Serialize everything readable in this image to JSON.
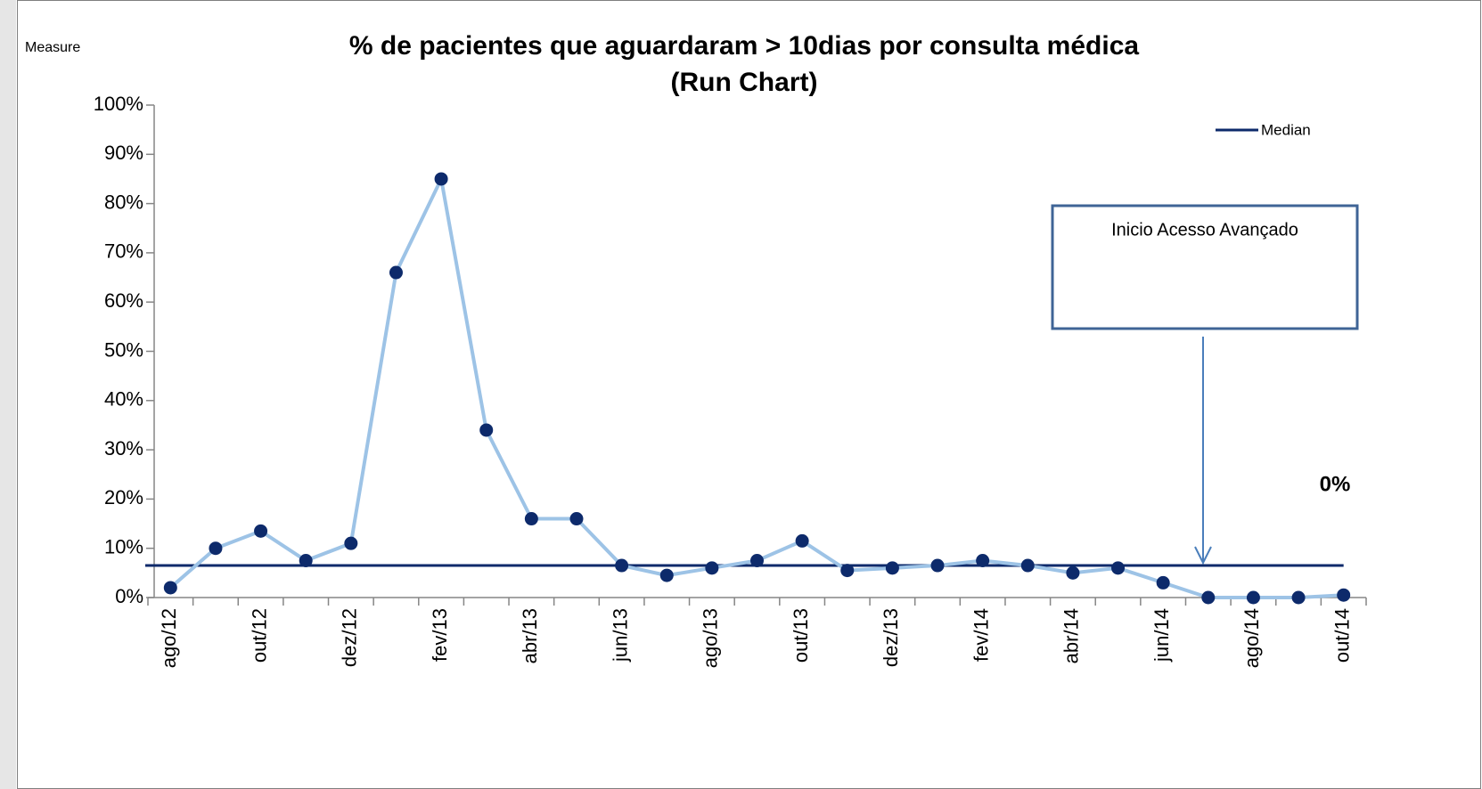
{
  "chart_data": {
    "type": "line",
    "title": [
      "% de pacientes que aguardaram > 10dias por consulta médica",
      "(Run Chart)"
    ],
    "y_label": "Measure",
    "categories": [
      "ago/12",
      null,
      "out/12",
      null,
      "dez/12",
      null,
      "fev/13",
      null,
      "abr/13",
      null,
      "jun/13",
      null,
      "ago/13",
      null,
      "out/13",
      null,
      "dez/13",
      null,
      "fev/14",
      null,
      "abr/14",
      null,
      "jun/14",
      null,
      "ago/14",
      null,
      "out/14"
    ],
    "series": [
      {
        "color": "#9dc3e6",
        "marker_color": "#0d2a6b",
        "values": [
          2,
          10,
          13.5,
          7.5,
          11,
          66,
          85,
          34,
          16,
          16,
          6.5,
          4.5,
          6,
          7.5,
          11.5,
          5.5,
          6,
          6.5,
          7.5,
          6.5,
          5,
          6,
          3,
          0,
          0,
          0,
          0.5
        ]
      }
    ],
    "median": {
      "name": "Median",
      "value": 6.5,
      "color": "#0d2a6b"
    },
    "ylim": [
      0,
      100
    ],
    "yticks": [
      {
        "value": 0,
        "label": "0%"
      },
      {
        "value": 10,
        "label": "10%"
      },
      {
        "value": 20,
        "label": "20%"
      },
      {
        "value": 30,
        "label": "30%"
      },
      {
        "value": 40,
        "label": "40%"
      },
      {
        "value": 50,
        "label": "50%"
      },
      {
        "value": 60,
        "label": "60%"
      },
      {
        "value": 70,
        "label": "70%"
      },
      {
        "value": 80,
        "label": "80%"
      },
      {
        "value": 90,
        "label": "90%"
      },
      {
        "value": 100,
        "label": "100%"
      }
    ],
    "annotations": {
      "box": "Inicio Acesso Avançado",
      "last_value": "0%"
    }
  }
}
